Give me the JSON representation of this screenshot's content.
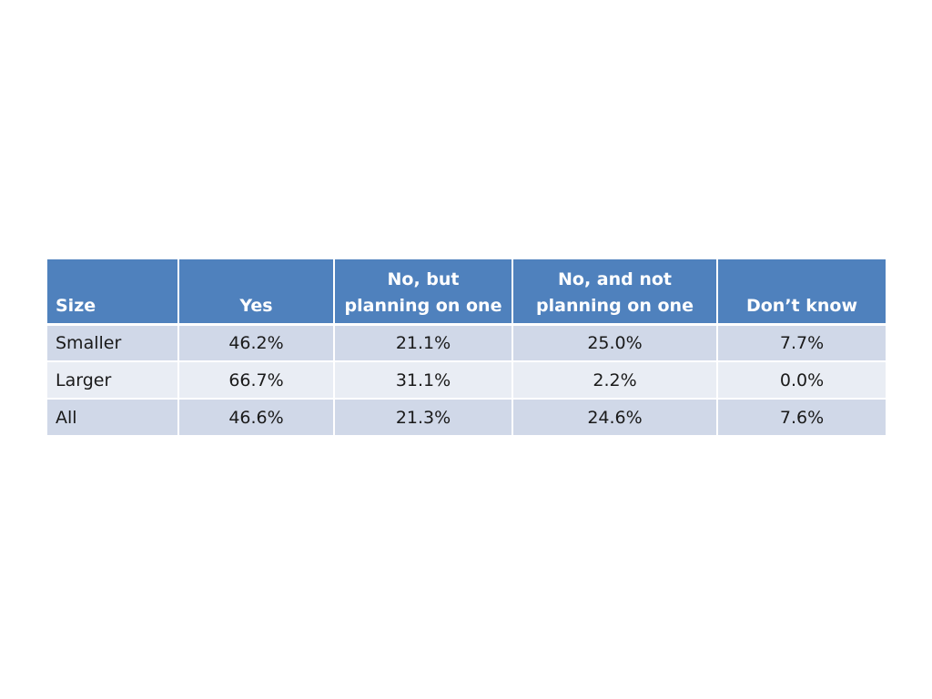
{
  "table": {
    "headers": [
      "Size",
      "Yes",
      "No, but\nplanning on one",
      "No, and not\nplanning on one",
      "Don’t know"
    ],
    "rows": [
      [
        "Smaller",
        "46.2%",
        "21.1%",
        "25.0%",
        "7.7%"
      ],
      [
        "Larger",
        "66.7%",
        "31.1%",
        "2.2%",
        "0.0%"
      ],
      [
        "All",
        "46.6%",
        "21.3%",
        "24.6%",
        "7.6%"
      ]
    ]
  },
  "colors": {
    "header_bg": "#4f81bd",
    "header_text": "#ffffff",
    "row_odd_bg": "#d0d8e8",
    "row_even_bg": "#e9edf4"
  }
}
